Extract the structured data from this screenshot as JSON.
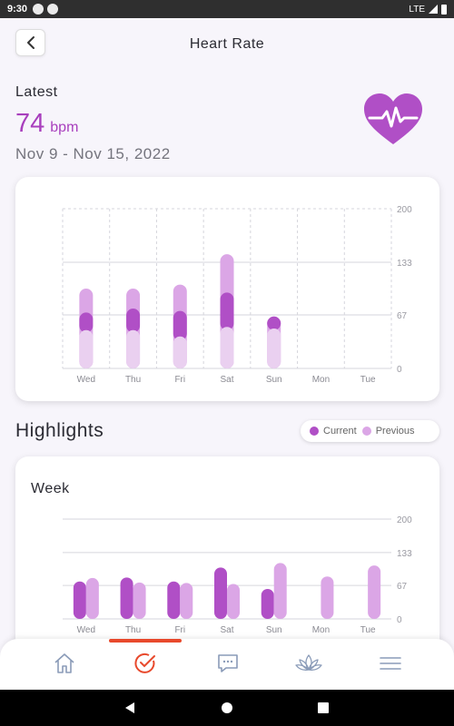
{
  "status_bar": {
    "time": "9:30",
    "network": "LTE"
  },
  "header": {
    "title": "Heart Rate"
  },
  "latest": {
    "label": "Latest",
    "value": "74",
    "unit": "bpm",
    "date_range": "Nov 9 - Nov 15, 2022"
  },
  "colors": {
    "current": "#b04fc6",
    "previous": "#dba6e6",
    "previous_light": "#ead0f0",
    "accent": "#a83fbd",
    "tab_active": "#e8492c"
  },
  "highlights": {
    "title": "Highlights",
    "legend": {
      "current": "Current",
      "previous": "Previous"
    },
    "week_title": "Week"
  },
  "chart_data": [
    {
      "type": "bar",
      "categories": [
        "Wed",
        "Thu",
        "Fri",
        "Sat",
        "Sun",
        "Mon",
        "Tue"
      ],
      "ylim": [
        0,
        200
      ],
      "yticks": [
        "200",
        "133",
        "67",
        "0"
      ],
      "series": [
        {
          "name": "Previous",
          "range": [
            [
              0,
              100
            ],
            [
              0,
              100
            ],
            [
              0,
              105
            ],
            [
              0,
              143
            ],
            [
              0,
              65
            ],
            null,
            null
          ]
        },
        {
          "name": "Current",
          "range": [
            [
              45,
              70
            ],
            [
              45,
              75
            ],
            [
              35,
              72
            ],
            [
              48,
              95
            ],
            [
              48,
              58
            ],
            null,
            null
          ]
        },
        {
          "range": [
            [
              0,
              48
            ],
            [
              0,
              48
            ],
            [
              0,
              40
            ],
            [
              0,
              52
            ],
            [
              0,
              50
            ],
            null,
            null
          ]
        }
      ]
    },
    {
      "type": "bar",
      "categories": [
        "Wed",
        "Thu",
        "Fri",
        "Sat",
        "Sun",
        "Mon",
        "Tue"
      ],
      "ylim": [
        0,
        200
      ],
      "yticks": [
        "200",
        "133",
        "67",
        "0"
      ],
      "series": [
        {
          "name": "Current",
          "values": [
            75,
            83,
            75,
            103,
            60,
            null,
            null
          ]
        },
        {
          "name": "Previous",
          "values": [
            82,
            73,
            72,
            70,
            112,
            85,
            107
          ]
        }
      ]
    }
  ],
  "tabs": [
    {
      "name": "home",
      "icon": "home-icon"
    },
    {
      "name": "tasks",
      "icon": "check-circle-icon",
      "active": true
    },
    {
      "name": "chat",
      "icon": "chat-icon"
    },
    {
      "name": "wellness",
      "icon": "lotus-icon"
    },
    {
      "name": "menu",
      "icon": "menu-icon"
    }
  ]
}
